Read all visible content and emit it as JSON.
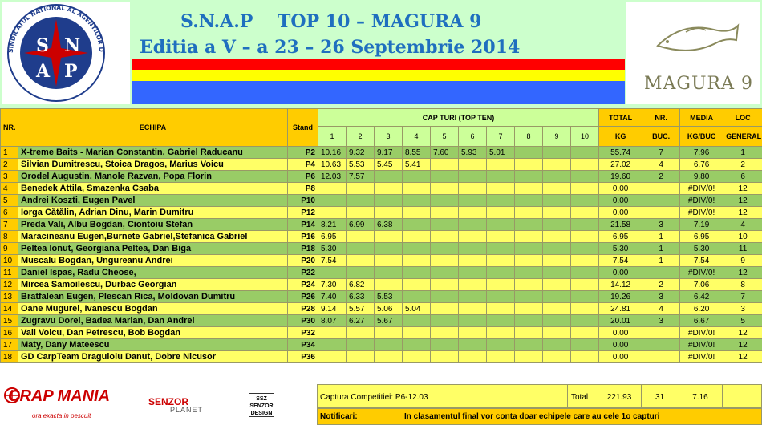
{
  "header": {
    "title_line1": "S.N.A.P    TOP 10 – MAGURA 9",
    "title_line2": "Editia a V – a 23 – 26 Septembrie 2014",
    "left_logo": {
      "arc_text": "SINDICATUL NATIONAL AL AGENTILOR DE POLITIE",
      "letters": [
        "S",
        "N",
        "A",
        "P"
      ]
    },
    "right_logo_text": "MAGURA 9",
    "colors": {
      "title": "#1f6fbf",
      "flag_red": "#ff0000",
      "flag_yellow": "#ffff00",
      "flag_blue": "#3366ff",
      "header_bg": "#ccffcc"
    }
  },
  "table": {
    "headers": {
      "nr": "NR.",
      "echipa": "ECHIPA",
      "stand": "Stand",
      "cap_turi": "CAP TURI      (TOP TEN)",
      "turi": [
        "1",
        "2",
        "3",
        "4",
        "5",
        "6",
        "7",
        "8",
        "9",
        "10"
      ],
      "total": "TOTAL",
      "total_unit": "KG",
      "nr_buc": "NR.",
      "nr_buc2": "BUC.",
      "media": "MEDIA",
      "media_unit": "KG/BUC",
      "loc": "LOC",
      "loc2": "GENERAL"
    },
    "rows": [
      {
        "nr": "1",
        "team": "X-treme Baits - Marian Constantin, Gabriel Raducanu",
        "stand": "P2",
        "caps": [
          "10.16",
          "9.32",
          "9.17",
          "8.55",
          "7.60",
          "5.93",
          "5.01",
          "",
          "",
          ""
        ],
        "total": "55.74",
        "buc": "7",
        "media": "7.96",
        "loc": "1"
      },
      {
        "nr": "2",
        "team": "Silvian Dumitrescu, Stoica Dragos, Marius Voicu",
        "stand": "P4",
        "caps": [
          "10.63",
          "5.53",
          "5.45",
          "5.41",
          "",
          "",
          "",
          "",
          "",
          ""
        ],
        "total": "27.02",
        "buc": "4",
        "media": "6.76",
        "loc": "2"
      },
      {
        "nr": "3",
        "team": "Orodel Augustin, Manole Razvan, Popa Florin",
        "stand": "P6",
        "caps": [
          "12.03",
          "7.57",
          "",
          "",
          "",
          "",
          "",
          "",
          "",
          ""
        ],
        "total": "19.60",
        "buc": "2",
        "media": "9.80",
        "loc": "6"
      },
      {
        "nr": "4",
        "team": "Benedek Attila, Smazenka Csaba",
        "stand": "P8",
        "caps": [
          "",
          "",
          "",
          "",
          "",
          "",
          "",
          "",
          "",
          ""
        ],
        "total": "0.00",
        "buc": "",
        "media": "#DIV/0!",
        "loc": "12"
      },
      {
        "nr": "5",
        "team": "Andrei Koszti, Eugen Pavel",
        "stand": "P10",
        "caps": [
          "",
          "",
          "",
          "",
          "",
          "",
          "",
          "",
          "",
          ""
        ],
        "total": "0.00",
        "buc": "",
        "media": "#DIV/0!",
        "loc": "12"
      },
      {
        "nr": "6",
        "team": "Iorga Cătălin, Adrian Dinu, Marin Dumitru",
        "stand": "P12",
        "caps": [
          "",
          "",
          "",
          "",
          "",
          "",
          "",
          "",
          "",
          ""
        ],
        "total": "0.00",
        "buc": "",
        "media": "#DIV/0!",
        "loc": "12"
      },
      {
        "nr": "7",
        "team": "Preda Vali, Albu Bogdan, Ciontoiu Stefan",
        "stand": "P14",
        "caps": [
          "8.21",
          "6.99",
          "6.38",
          "",
          "",
          "",
          "",
          "",
          "",
          ""
        ],
        "total": "21.58",
        "buc": "3",
        "media": "7.19",
        "loc": "4"
      },
      {
        "nr": "8",
        "team": "Maracineanu Eugen,Burnete Gabriel,Stefanica Gabriel",
        "stand": "P16",
        "caps": [
          "6.95",
          "",
          "",
          "",
          "",
          "",
          "",
          "",
          "",
          ""
        ],
        "total": "6.95",
        "buc": "1",
        "media": "6.95",
        "loc": "10"
      },
      {
        "nr": "9",
        "team": "Peltea Ionut, Georgiana Peltea, Dan Biga",
        "stand": "P18",
        "caps": [
          "5.30",
          "",
          "",
          "",
          "",
          "",
          "",
          "",
          "",
          ""
        ],
        "total": "5.30",
        "buc": "1",
        "media": "5.30",
        "loc": "11"
      },
      {
        "nr": "10",
        "team": "Muscalu Bogdan, Ungureanu Andrei",
        "stand": "P20",
        "caps": [
          "7.54",
          "",
          "",
          "",
          "",
          "",
          "",
          "",
          "",
          ""
        ],
        "total": "7.54",
        "buc": "1",
        "media": "7.54",
        "loc": "9"
      },
      {
        "nr": "11",
        "team": "Daniel Ispas, Radu Cheose,",
        "stand": "P22",
        "caps": [
          "",
          "",
          "",
          "",
          "",
          "",
          "",
          "",
          "",
          ""
        ],
        "total": "0.00",
        "buc": "",
        "media": "#DIV/0!",
        "loc": "12"
      },
      {
        "nr": "12",
        "team": "Mircea Samoilescu, Durbac Georgian",
        "stand": "P24",
        "caps": [
          "7.30",
          "6.82",
          "",
          "",
          "",
          "",
          "",
          "",
          "",
          ""
        ],
        "total": "14.12",
        "buc": "2",
        "media": "7.06",
        "loc": "8"
      },
      {
        "nr": "13",
        "team": "Bratfalean Eugen, Plescan Rica, Moldovan Dumitru",
        "stand": "P26",
        "caps": [
          "7.40",
          "6.33",
          "5.53",
          "",
          "",
          "",
          "",
          "",
          "",
          ""
        ],
        "total": "19.26",
        "buc": "3",
        "media": "6.42",
        "loc": "7"
      },
      {
        "nr": "14",
        "team": "Oane Mugurel, Ivanescu Bogdan",
        "stand": "P28",
        "caps": [
          "9.14",
          "5.57",
          "5.06",
          "5.04",
          "",
          "",
          "",
          "",
          "",
          ""
        ],
        "total": "24.81",
        "buc": "4",
        "media": "6.20",
        "loc": "3"
      },
      {
        "nr": "15",
        "team": "Zugravu Dorel, Badea Marian, Dan Andrei",
        "stand": "P30",
        "caps": [
          "8.07",
          "6.27",
          "5.67",
          "",
          "",
          "",
          "",
          "",
          "",
          ""
        ],
        "total": "20.01",
        "buc": "3",
        "media": "6.67",
        "loc": "5"
      },
      {
        "nr": "16",
        "team": "Vali Voicu, Dan Petrescu, Bob Bogdan",
        "stand": "P32",
        "caps": [
          "",
          "",
          "",
          "",
          "",
          "",
          "",
          "",
          "",
          ""
        ],
        "total": "0.00",
        "buc": "",
        "media": "#DIV/0!",
        "loc": "12"
      },
      {
        "nr": "17",
        "team": "Maty, Dany Mateescu",
        "stand": "P34",
        "caps": [
          "",
          "",
          "",
          "",
          "",
          "",
          "",
          "",
          "",
          ""
        ],
        "total": "0.00",
        "buc": "",
        "media": "#DIV/0!",
        "loc": "12"
      },
      {
        "nr": "18",
        "team": "GD CarpTeam  Draguloiu Danut, Dobre Nicusor",
        "stand": "P36",
        "caps": [
          "",
          "",
          "",
          "",
          "",
          "",
          "",
          "",
          "",
          ""
        ],
        "total": "0.00",
        "buc": "",
        "media": "#DIV/0!",
        "loc": "12"
      }
    ],
    "colors": {
      "row_green": "#99cc66",
      "row_yellow": "#ffff66",
      "header_orange": "#ffcc00",
      "header_turi": "#ccff99"
    }
  },
  "footer": {
    "sponsor1": "CRAP MANIA",
    "sponsor1_tagline": "ora exacta in pescuit",
    "sponsor2": "SENZOR",
    "sponsor2_sub": "PLANET",
    "sponsor3": "SSZ SENZOR DESIGN",
    "capture_label": "Captura Competitiei:  P6-12.03",
    "total_label": "Total",
    "total_kg": "221.93",
    "total_buc": "31",
    "total_media": "7.16",
    "notif_label": "Notificari:",
    "notif_text": "In clasamentul final vor conta doar echipele care au cele 1o capturi"
  }
}
